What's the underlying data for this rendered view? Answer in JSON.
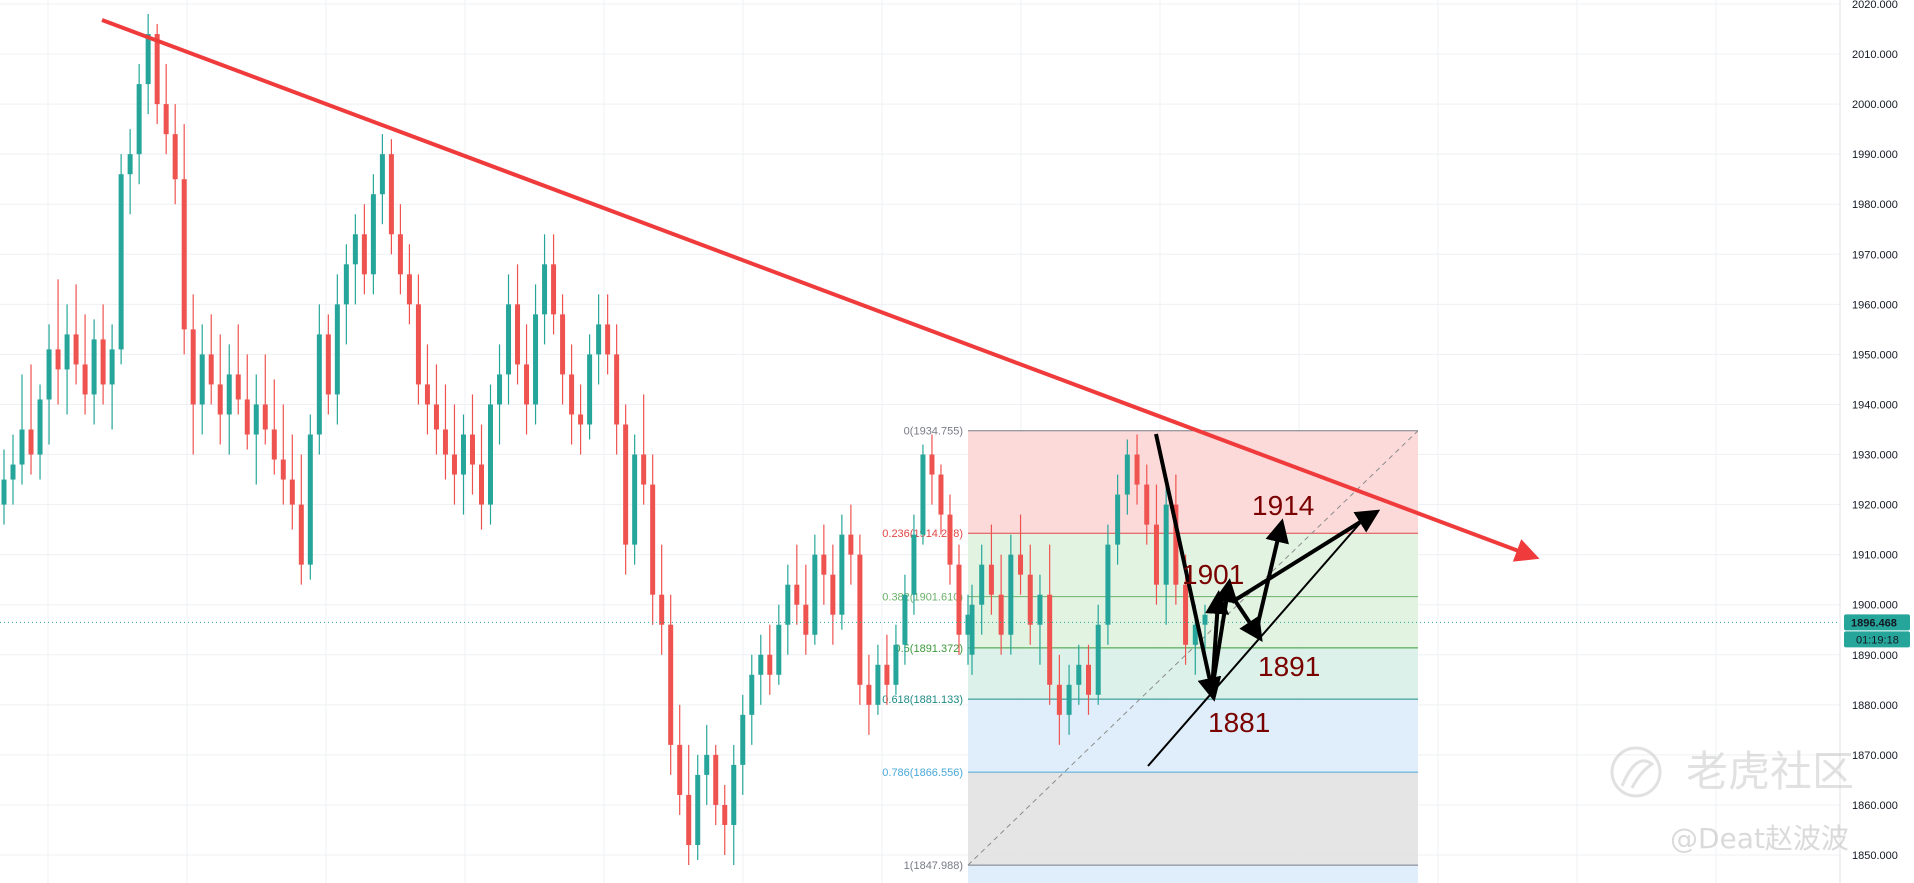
{
  "chart_data": {
    "type": "candlestick",
    "y_axis": {
      "min": 1844,
      "max": 2020,
      "ticks": [
        2020,
        2010,
        2000,
        1990,
        1980,
        1970,
        1960,
        1950,
        1940,
        1930,
        1920,
        1910,
        1900,
        1890,
        1880,
        1870,
        1860,
        1850
      ],
      "tick_labels": [
        "2020.000",
        "2010.000",
        "2000.000",
        "1990.000",
        "1980.000",
        "1970.000",
        "1960.000",
        "1950.000",
        "1940.000",
        "1930.000",
        "1920.000",
        "1910.000",
        "1900.000",
        "1890.000",
        "1880.000",
        "1870.000",
        "1860.000",
        "1850.000"
      ]
    },
    "current_price": 1896.468,
    "current_price_label": "1896.468",
    "countdown_label": "01:19:18",
    "grid": true,
    "colors": {
      "up": "#26a69a",
      "down": "#ef5350",
      "trendline": "#ef3b3b",
      "price_tag": "#26a69a"
    },
    "fibonacci": {
      "high": 1934.755,
      "low": 1847.988,
      "levels": [
        {
          "ratio": 0,
          "price": 1934.755,
          "label": "0(1934.755)",
          "color": "#787b86",
          "fill": "#fcd6d6"
        },
        {
          "ratio": 0.236,
          "price": 1914.278,
          "label": "0.236(1914.278)",
          "color": "#e04646",
          "fill": "#dff2df"
        },
        {
          "ratio": 0.382,
          "price": 1901.61,
          "label": "0.382(1901.610)",
          "color": "#6ab16a",
          "fill": "#dff2df"
        },
        {
          "ratio": 0.5,
          "price": 1891.372,
          "label": "0.5(1891.372)",
          "color": "#3c9a3c",
          "fill": "#d8efe8"
        },
        {
          "ratio": 0.618,
          "price": 1881.133,
          "label": "0.618(1881.133)",
          "color": "#1f8a84",
          "fill": "#dcecfa"
        },
        {
          "ratio": 0.786,
          "price": 1866.556,
          "label": "0.786(1866.556)",
          "color": "#4aa8d8",
          "fill": "#e2e2e2"
        },
        {
          "ratio": 1,
          "price": 1847.988,
          "label": "1(1847.988)",
          "color": "#787b86",
          "fill": "#dcecfa"
        }
      ]
    },
    "annotations": [
      {
        "text": "1914",
        "price": 1914
      },
      {
        "text": "1901",
        "price": 1901
      },
      {
        "text": "1891",
        "price": 1891
      },
      {
        "text": "1881",
        "price": 1881
      }
    ],
    "watermark": {
      "brand": "老虎社区",
      "handle": "@Deat赵波波"
    },
    "candles": [
      [
        1920,
        1931,
        1916,
        1925
      ],
      [
        1925,
        1934,
        1920,
        1928
      ],
      [
        1928,
        1946,
        1924,
        1935
      ],
      [
        1935,
        1948,
        1926,
        1930
      ],
      [
        1930,
        1944,
        1925,
        1941
      ],
      [
        1941,
        1956,
        1932,
        1951
      ],
      [
        1951,
        1965,
        1940,
        1947
      ],
      [
        1947,
        1960,
        1938,
        1954
      ],
      [
        1954,
        1964,
        1944,
        1948
      ],
      [
        1948,
        1958,
        1938,
        1942
      ],
      [
        1942,
        1957,
        1936,
        1953
      ],
      [
        1953,
        1960,
        1940,
        1944
      ],
      [
        1944,
        1956,
        1935,
        1951
      ],
      [
        1951,
        1990,
        1948,
        1986
      ],
      [
        1986,
        1995,
        1978,
        1990
      ],
      [
        1990,
        2008,
        1984,
        2004
      ],
      [
        2004,
        2018,
        1998,
        2014
      ],
      [
        2014,
        2016,
        1996,
        2000
      ],
      [
        2000,
        2008,
        1990,
        1994
      ],
      [
        1994,
        2000,
        1980,
        1985
      ],
      [
        1985,
        1996,
        1950,
        1955
      ],
      [
        1955,
        1962,
        1930,
        1940
      ],
      [
        1940,
        1956,
        1934,
        1950
      ],
      [
        1950,
        1958,
        1940,
        1944
      ],
      [
        1944,
        1954,
        1932,
        1938
      ],
      [
        1938,
        1952,
        1930,
        1946
      ],
      [
        1946,
        1956,
        1938,
        1941
      ],
      [
        1941,
        1950,
        1931,
        1934
      ],
      [
        1934,
        1946,
        1924,
        1940
      ],
      [
        1940,
        1950,
        1932,
        1935
      ],
      [
        1935,
        1945,
        1926,
        1929
      ],
      [
        1929,
        1940,
        1920,
        1925
      ],
      [
        1925,
        1934,
        1915,
        1920
      ],
      [
        1920,
        1930,
        1904,
        1908
      ],
      [
        1908,
        1938,
        1905,
        1934
      ],
      [
        1934,
        1960,
        1930,
        1954
      ],
      [
        1954,
        1958,
        1938,
        1942
      ],
      [
        1942,
        1966,
        1936,
        1960
      ],
      [
        1960,
        1972,
        1952,
        1968
      ],
      [
        1968,
        1978,
        1960,
        1974
      ],
      [
        1974,
        1980,
        1962,
        1966
      ],
      [
        1966,
        1986,
        1962,
        1982
      ],
      [
        1982,
        1994,
        1976,
        1990
      ],
      [
        1990,
        1993,
        1970,
        1974
      ],
      [
        1974,
        1980,
        1962,
        1966
      ],
      [
        1966,
        1972,
        1956,
        1960
      ],
      [
        1960,
        1966,
        1940,
        1944
      ],
      [
        1944,
        1952,
        1934,
        1940
      ],
      [
        1940,
        1948,
        1930,
        1935
      ],
      [
        1935,
        1944,
        1925,
        1930
      ],
      [
        1930,
        1940,
        1920,
        1926
      ],
      [
        1926,
        1938,
        1918,
        1934
      ],
      [
        1934,
        1942,
        1922,
        1928
      ],
      [
        1928,
        1936,
        1915,
        1920
      ],
      [
        1920,
        1944,
        1916,
        1940
      ],
      [
        1940,
        1952,
        1932,
        1946
      ],
      [
        1946,
        1966,
        1940,
        1960
      ],
      [
        1960,
        1968,
        1944,
        1948
      ],
      [
        1948,
        1956,
        1934,
        1940
      ],
      [
        1940,
        1964,
        1936,
        1958
      ],
      [
        1958,
        1974,
        1952,
        1968
      ],
      [
        1968,
        1974,
        1954,
        1958
      ],
      [
        1958,
        1962,
        1940,
        1946
      ],
      [
        1946,
        1952,
        1932,
        1938
      ],
      [
        1938,
        1944,
        1930,
        1936
      ],
      [
        1936,
        1954,
        1933,
        1950
      ],
      [
        1950,
        1962,
        1944,
        1956
      ],
      [
        1956,
        1962,
        1946,
        1950
      ],
      [
        1950,
        1956,
        1930,
        1936
      ],
      [
        1936,
        1940,
        1906,
        1912
      ],
      [
        1912,
        1934,
        1908,
        1930
      ],
      [
        1930,
        1942,
        1920,
        1924
      ],
      [
        1924,
        1930,
        1896,
        1902
      ],
      [
        1902,
        1912,
        1890,
        1896
      ],
      [
        1896,
        1902,
        1866,
        1872
      ],
      [
        1872,
        1880,
        1858,
        1862
      ],
      [
        1862,
        1872,
        1848,
        1852
      ],
      [
        1852,
        1870,
        1849,
        1866
      ],
      [
        1866,
        1876,
        1860,
        1870
      ],
      [
        1870,
        1872,
        1856,
        1860
      ],
      [
        1860,
        1864,
        1850,
        1856
      ],
      [
        1856,
        1872,
        1848,
        1868
      ],
      [
        1868,
        1882,
        1862,
        1878
      ],
      [
        1878,
        1890,
        1872,
        1886
      ],
      [
        1886,
        1894,
        1880,
        1890
      ],
      [
        1890,
        1896,
        1882,
        1886
      ],
      [
        1886,
        1900,
        1884,
        1896
      ],
      [
        1896,
        1908,
        1890,
        1904
      ],
      [
        1904,
        1912,
        1896,
        1900
      ],
      [
        1900,
        1908,
        1890,
        1894
      ],
      [
        1894,
        1914,
        1892,
        1910
      ],
      [
        1910,
        1916,
        1900,
        1906
      ],
      [
        1906,
        1912,
        1892,
        1898
      ],
      [
        1898,
        1918,
        1895,
        1914
      ],
      [
        1914,
        1920,
        1904,
        1910
      ],
      [
        1910,
        1914,
        1880,
        1884
      ],
      [
        1884,
        1890,
        1874,
        1880
      ],
      [
        1880,
        1892,
        1878,
        1888
      ],
      [
        1888,
        1894,
        1880,
        1884
      ],
      [
        1884,
        1896,
        1882,
        1892
      ],
      [
        1892,
        1906,
        1888,
        1902
      ],
      [
        1902,
        1918,
        1898,
        1914
      ],
      [
        1914,
        1932,
        1912,
        1930
      ],
      [
        1930,
        1934,
        1920,
        1926
      ],
      [
        1926,
        1928,
        1914,
        1918
      ],
      [
        1918,
        1922,
        1904,
        1908
      ],
      [
        1908,
        1912,
        1890,
        1894
      ],
      [
        1894,
        1902,
        1888,
        1898
      ]
    ]
  }
}
